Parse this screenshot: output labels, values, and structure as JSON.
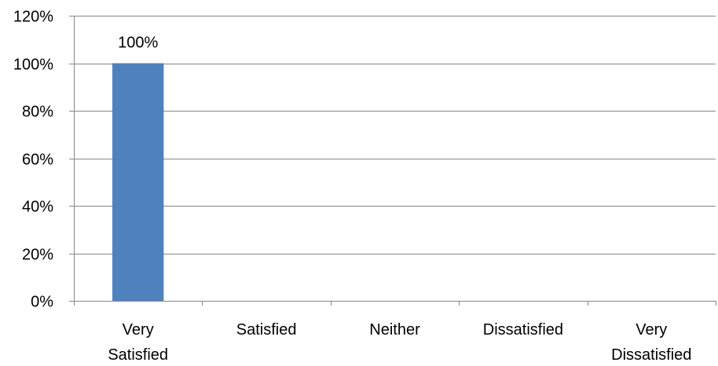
{
  "chart_data": {
    "type": "bar",
    "categories": [
      [
        "Very",
        "Satisfied"
      ],
      [
        "Satisfied"
      ],
      [
        "Neither"
      ],
      [
        "Dissatisfied"
      ],
      [
        "Very",
        "Dissatisfied"
      ]
    ],
    "values": [
      100,
      0,
      0,
      0,
      0
    ],
    "data_labels": [
      "100%",
      "",
      "",
      "",
      ""
    ],
    "ylim": [
      0,
      120
    ],
    "yticks": [
      0,
      20,
      40,
      60,
      80,
      100,
      120
    ],
    "ytick_labels": [
      "0%",
      "20%",
      "40%",
      "60%",
      "80%",
      "100%",
      "120%"
    ],
    "grid": true,
    "legend": "none",
    "title": "",
    "xlabel": "",
    "ylabel": "",
    "colors": {
      "bar": "#4f81bd",
      "gridline": "#868686",
      "axis": "#868686",
      "text": "#000000"
    }
  }
}
